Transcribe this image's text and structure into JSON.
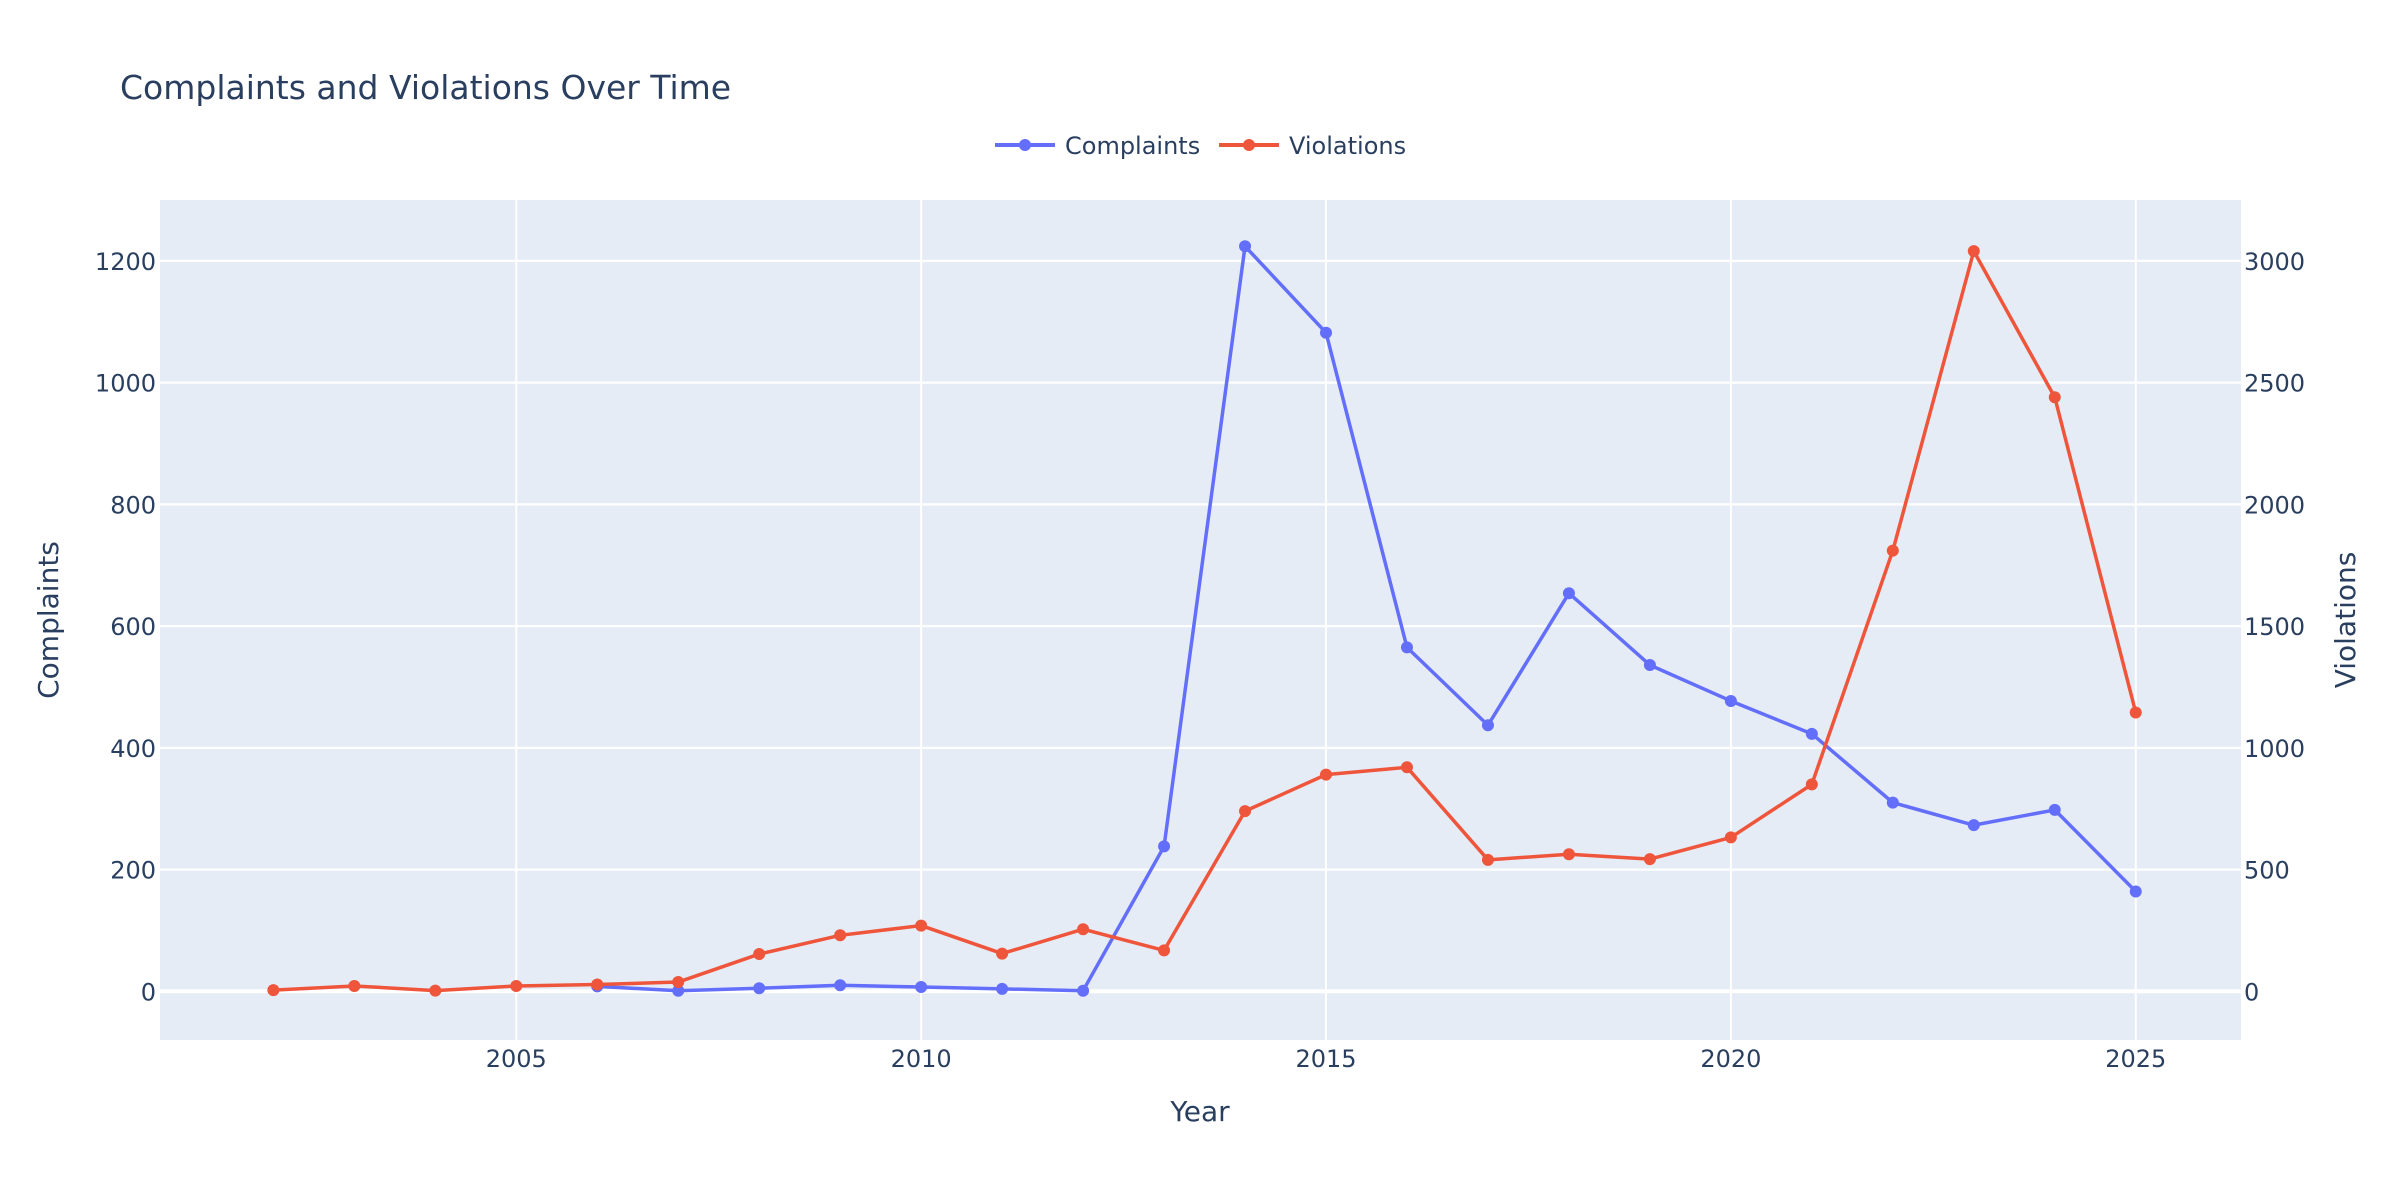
{
  "colors": {
    "plot_bg": "#e5ecf6",
    "grid": "#ffffff",
    "text": "#2a3f5f",
    "complaints": "#636efa",
    "violations": "#ef553b"
  },
  "chart_data": {
    "type": "line",
    "title": "Complaints and Violations Over Time",
    "xlabel": "Year",
    "ylabel": "Complaints",
    "y2label": "Violations",
    "xlim": [
      2000.6,
      2026.3
    ],
    "ylim": [
      -80,
      1300
    ],
    "y2lim": [
      -200,
      3250
    ],
    "x_ticks": [
      2005,
      2010,
      2015,
      2020,
      2025
    ],
    "y_ticks": [
      0,
      200,
      400,
      600,
      800,
      1000,
      1200
    ],
    "y2_ticks": [
      0,
      500,
      1000,
      1500,
      2000,
      2500,
      3000
    ],
    "legend": [
      "Complaints",
      "Violations"
    ],
    "legend_position": "top-center",
    "series": [
      {
        "name": "Complaints",
        "axis": "y",
        "x": [
          2006,
          2007,
          2008,
          2009,
          2010,
          2011,
          2012,
          2013,
          2014,
          2015,
          2016,
          2017,
          2018,
          2019,
          2020,
          2021,
          2022,
          2023,
          2024,
          2025
        ],
        "values": [
          8,
          1,
          5,
          10,
          7,
          4,
          1,
          238,
          1224,
          1082,
          565,
          437,
          654,
          536,
          477,
          423,
          310,
          273,
          298,
          164
        ]
      },
      {
        "name": "Violations",
        "axis": "y2",
        "x": [
          2002,
          2003,
          2004,
          2005,
          2006,
          2007,
          2008,
          2009,
          2010,
          2011,
          2012,
          2013,
          2014,
          2015,
          2016,
          2017,
          2018,
          2019,
          2020,
          2021,
          2022,
          2023,
          2024,
          2025
        ],
        "values": [
          5,
          22,
          3,
          22,
          28,
          38,
          153,
          230,
          270,
          155,
          255,
          168,
          740,
          890,
          920,
          540,
          563,
          543,
          632,
          850,
          1810,
          3040,
          2440,
          1145
        ]
      }
    ]
  }
}
